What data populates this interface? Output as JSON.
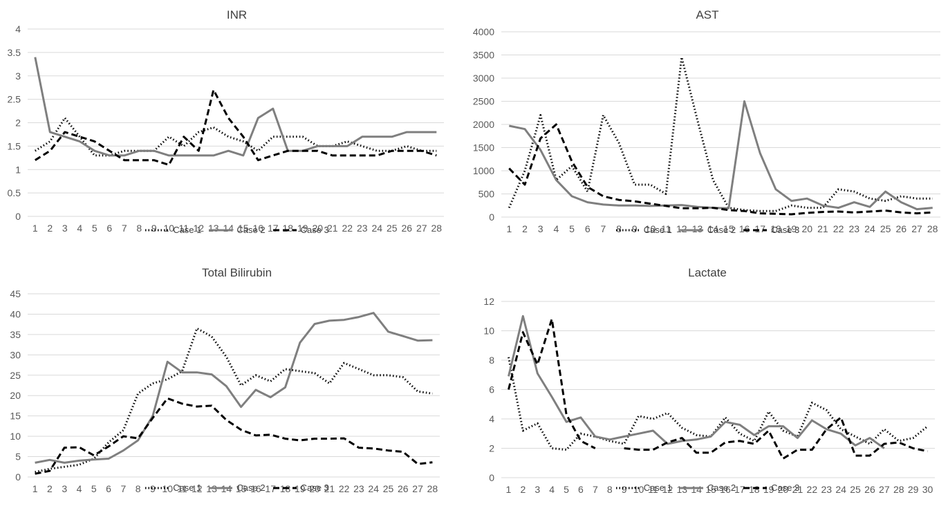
{
  "chart_data": [
    {
      "type": "line",
      "title": "INR",
      "x": [
        1,
        2,
        3,
        4,
        5,
        6,
        7,
        8,
        9,
        10,
        11,
        12,
        13,
        14,
        15,
        16,
        17,
        18,
        19,
        20,
        21,
        22,
        23,
        24,
        25,
        26,
        27,
        28
      ],
      "ylim": [
        0,
        4
      ],
      "yticks": [
        "0",
        "0.5",
        "1",
        "1.5",
        "2",
        "2.5",
        "3",
        "3.5",
        "4"
      ],
      "grid": true,
      "legend": "bottom",
      "series": [
        {
          "name": "Case 1",
          "style": "dotted",
          "color": "#000000",
          "values": [
            1.4,
            1.6,
            2.1,
            1.7,
            1.3,
            1.3,
            1.4,
            1.4,
            1.4,
            1.7,
            1.5,
            1.8,
            1.9,
            1.7,
            1.6,
            1.4,
            1.7,
            1.7,
            1.7,
            1.5,
            1.5,
            1.6,
            1.5,
            1.4,
            1.4,
            1.5,
            1.4,
            1.4
          ]
        },
        {
          "name": "Case 2",
          "style": "solid",
          "color": "#7f7f7f",
          "values": [
            3.4,
            1.8,
            1.7,
            1.6,
            1.4,
            1.3,
            1.3,
            1.4,
            1.4,
            1.3,
            1.3,
            1.3,
            1.3,
            1.4,
            1.3,
            2.1,
            2.3,
            1.4,
            1.4,
            1.5,
            1.5,
            1.5,
            1.7,
            1.7,
            1.7,
            1.8,
            1.8,
            1.8
          ]
        },
        {
          "name": "Case 3",
          "style": "dashed",
          "color": "#000000",
          "values": [
            1.2,
            1.4,
            1.8,
            1.7,
            1.6,
            1.4,
            1.2,
            1.2,
            1.2,
            1.1,
            1.7,
            1.4,
            2.7,
            2.1,
            1.7,
            1.2,
            1.3,
            1.4,
            1.4,
            1.4,
            1.3,
            1.3,
            1.3,
            1.3,
            1.4,
            1.4,
            1.4,
            1.3
          ]
        }
      ]
    },
    {
      "type": "line",
      "title": "AST",
      "x": [
        1,
        2,
        3,
        4,
        5,
        6,
        7,
        8,
        9,
        10,
        11,
        12,
        13,
        14,
        15,
        16,
        17,
        18,
        19,
        20,
        21,
        22,
        23,
        24,
        25,
        26,
        27,
        28
      ],
      "ylim": [
        0,
        4000
      ],
      "yticks": [
        "0",
        "500",
        "1000",
        "1500",
        "2000",
        "2500",
        "3000",
        "3500",
        "4000"
      ],
      "grid": true,
      "legend": "bottom",
      "series": [
        {
          "name": "Case 1",
          "style": "dotted",
          "color": "#000000",
          "values": [
            200,
            1000,
            2200,
            800,
            1100,
            550,
            2200,
            1600,
            700,
            700,
            500,
            3450,
            2100,
            800,
            200,
            150,
            130,
            130,
            250,
            200,
            200,
            600,
            550,
            400,
            350,
            450,
            400,
            400
          ]
        },
        {
          "name": "Case 2",
          "style": "solid",
          "color": "#7f7f7f",
          "values": [
            1970,
            1900,
            1450,
            800,
            450,
            320,
            270,
            250,
            250,
            240,
            250,
            260,
            220,
            200,
            190,
            2500,
            1380,
            600,
            350,
            400,
            250,
            200,
            320,
            220,
            550,
            320,
            170,
            200
          ]
        },
        {
          "name": "Case 3",
          "style": "dashed",
          "color": "#000000",
          "values": [
            1050,
            700,
            1700,
            2000,
            1200,
            650,
            450,
            370,
            340,
            290,
            240,
            190,
            190,
            200,
            150,
            130,
            80,
            70,
            60,
            90,
            110,
            120,
            100,
            120,
            140,
            100,
            80,
            100
          ]
        }
      ]
    },
    {
      "type": "line",
      "title": "Total Bilirubin",
      "x": [
        1,
        2,
        3,
        4,
        5,
        6,
        7,
        8,
        9,
        10,
        11,
        12,
        13,
        14,
        15,
        16,
        17,
        18,
        19,
        20,
        21,
        22,
        23,
        24,
        25,
        26,
        27,
        28
      ],
      "ylim": [
        0,
        45
      ],
      "yticks": [
        "0",
        "5",
        "10",
        "15",
        "20",
        "25",
        "30",
        "35",
        "40",
        "45"
      ],
      "grid": true,
      "legend": "bottom",
      "series": [
        {
          "name": "Case 1",
          "style": "dotted",
          "color": "#000000",
          "values": [
            1.2,
            2,
            2.5,
            3,
            4.5,
            8.5,
            11.5,
            20.5,
            23,
            24,
            26,
            36.5,
            34.5,
            29.5,
            22.5,
            25,
            23.5,
            26.5,
            26,
            25.5,
            23,
            28,
            26.5,
            25,
            25,
            24.5,
            21,
            20.5
          ]
        },
        {
          "name": "Case 2",
          "style": "solid",
          "color": "#7f7f7f",
          "values": [
            3.5,
            4.2,
            3.5,
            4,
            4.3,
            4.5,
            6.5,
            9,
            15,
            28.3,
            25.7,
            25.7,
            25.2,
            22.3,
            17.2,
            21.4,
            19.6,
            22,
            33,
            37.6,
            38.4,
            38.6,
            39.3,
            40.3,
            35.7,
            34.6,
            33.5,
            33.6
          ]
        },
        {
          "name": "Case 3",
          "style": "dashed",
          "color": "#000000",
          "values": [
            0.8,
            1.5,
            7.2,
            7.3,
            5.3,
            7.5,
            10,
            9.5,
            14.5,
            19.3,
            18,
            17.3,
            17.5,
            14,
            11.6,
            10.2,
            10.4,
            9.4,
            9,
            9.4,
            9.4,
            9.5,
            7.2,
            7,
            6.5,
            6.2,
            3.2,
            3.6
          ]
        }
      ]
    },
    {
      "type": "line",
      "title": "Lactate",
      "x": [
        1,
        2,
        3,
        4,
        5,
        6,
        7,
        8,
        9,
        10,
        11,
        12,
        13,
        14,
        15,
        16,
        17,
        18,
        19,
        20,
        21,
        22,
        23,
        24,
        25,
        26,
        27,
        28,
        29,
        30
      ],
      "ylim": [
        0,
        12
      ],
      "yticks": [
        "0",
        "2",
        "4",
        "6",
        "8",
        "10",
        "12"
      ],
      "grid": true,
      "legend": "bottom",
      "series": [
        {
          "name": "Case 1",
          "style": "dotted",
          "color": "#000000",
          "values": [
            8.2,
            3.2,
            3.7,
            2,
            1.9,
            3,
            2.8,
            2.5,
            2.3,
            4.2,
            4,
            4.4,
            3.4,
            2.9,
            2.8,
            4.1,
            3,
            2.5,
            4.5,
            3.2,
            2.8,
            5.1,
            4.6,
            3.3,
            2.8,
            2.3,
            3.3,
            2.5,
            2.7,
            3.5
          ]
        },
        {
          "name": "Case 2",
          "style": "solid",
          "color": "#7f7f7f",
          "values": [
            6.9,
            11,
            7.1,
            5.5,
            3.8,
            4.1,
            2.8,
            2.6,
            2.8,
            3,
            3.2,
            2.3,
            2.5,
            2.6,
            2.8,
            3.8,
            3.6,
            2.9,
            3.5,
            3.5,
            2.7,
            3.9,
            3.3,
            3,
            2.2,
            2.7,
            2,
            null,
            null,
            null
          ]
        },
        {
          "name": "Case 3",
          "style": "dashed",
          "color": "#000000",
          "values": [
            6,
            9.9,
            7.7,
            10.8,
            4.3,
            2.5,
            2,
            null,
            2,
            1.9,
            1.9,
            2.4,
            2.7,
            1.7,
            1.7,
            2.4,
            2.5,
            2.3,
            3.2,
            1.3,
            1.9,
            1.9,
            3.3,
            4.1,
            1.5,
            1.5,
            2.3,
            2.4,
            2,
            1.8
          ]
        }
      ]
    }
  ]
}
